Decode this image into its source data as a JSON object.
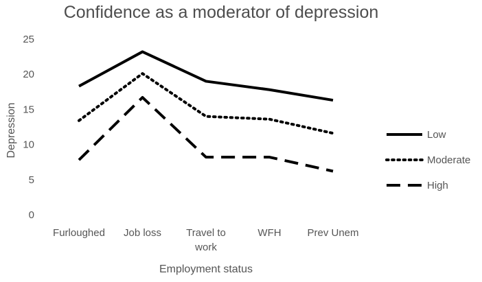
{
  "chart_data": {
    "type": "line",
    "title": "Confidence as a moderator of depression",
    "xlabel": "Employment status",
    "ylabel": "Depression",
    "categories": [
      "Furloughed",
      "Job loss",
      "Travel to work",
      "WFH",
      "Prev Unem"
    ],
    "category_lines": [
      [
        "Furloughed"
      ],
      [
        "Job loss"
      ],
      [
        "Travel to",
        "work"
      ],
      [
        "WFH"
      ],
      [
        "Prev Unem"
      ]
    ],
    "ylim": [
      0,
      25
    ],
    "yticks": [
      0,
      5,
      10,
      15,
      20,
      25
    ],
    "grid": false,
    "legend_position": "right",
    "series": [
      {
        "name": "Low",
        "values": [
          18.3,
          23.2,
          19.0,
          17.8,
          16.3
        ],
        "color": "#000000",
        "style": "solid"
      },
      {
        "name": "Moderate",
        "values": [
          13.4,
          20.1,
          14.0,
          13.6,
          11.6
        ],
        "color": "#000000",
        "style": "dotted"
      },
      {
        "name": "High",
        "values": [
          7.8,
          16.7,
          8.2,
          8.2,
          6.2
        ],
        "color": "#000000",
        "style": "dashed"
      }
    ]
  }
}
